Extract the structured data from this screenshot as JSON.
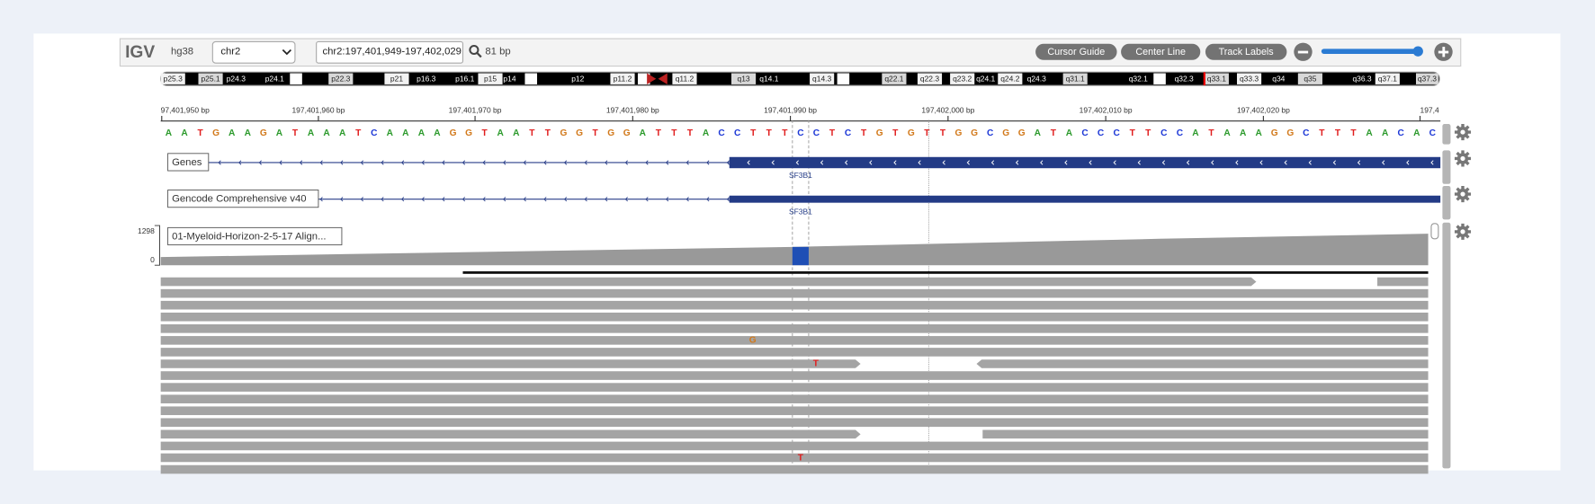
{
  "header": {
    "logo": "IGV",
    "genome": "hg38",
    "chromosome": "chr2",
    "locus": "chr2:197,401,949-197,402,029",
    "width": "81 bp",
    "buttons": [
      "Cursor Guide",
      "Center Line",
      "Track Labels"
    ]
  },
  "ideogram": {
    "bands": [
      "p25.3",
      "p25.1",
      "p24.3",
      "p24.1",
      "p22.3",
      "p21",
      "p16.3",
      "p16.1",
      "p15",
      "p14",
      "p12",
      "p11.2",
      "q11.2",
      "q13",
      "q14.1",
      "q14.3",
      "q22.1",
      "q22.3",
      "q23.2",
      "q24.1",
      "q24.2",
      "q24.3",
      "q31.1",
      "q32.1",
      "q32.3",
      "q33.1",
      "q33.3",
      "q34",
      "q35",
      "q36.3",
      "q37.1",
      "q37.3"
    ]
  },
  "ruler": {
    "labels": [
      "97,401,950 bp",
      "197,401,960 bp",
      "197,401,970 bp",
      "197,401,980 bp",
      "197,401,990 bp",
      "197,402,000 bp",
      "197,402,010 bp",
      "197,402,020 bp",
      "197,4"
    ]
  },
  "sequence": [
    "A",
    "A",
    "T",
    "G",
    "A",
    "A",
    "G",
    "A",
    "T",
    "A",
    "A",
    "A",
    "T",
    "C",
    "A",
    "A",
    "A",
    "A",
    "G",
    "G",
    "T",
    "A",
    "A",
    "T",
    "T",
    "G",
    "G",
    "T",
    "G",
    "G",
    "A",
    "T",
    "T",
    "T",
    "A",
    "C",
    "C",
    "T",
    "T",
    "T",
    "C",
    "C",
    "T",
    "C",
    "T",
    "G",
    "T",
    "G",
    "T",
    "T",
    "G",
    "G",
    "C",
    "G",
    "G",
    "A",
    "T",
    "A",
    "C",
    "C",
    "C",
    "T",
    "T",
    "C",
    "C",
    "A",
    "T",
    "A",
    "A",
    "A",
    "G",
    "G",
    "C",
    "T",
    "T",
    "T",
    "A",
    "A",
    "C",
    "A",
    "C"
  ],
  "tracks": [
    {
      "name": "Genes",
      "gene": "SF3B1"
    },
    {
      "name": "Gencode Comprehensive v40",
      "gene": "SF3B1"
    },
    {
      "name": "01-Myeloid-Horizon-2-5-17 Align...",
      "scale_max": "1298",
      "scale_min": "0",
      "mismatches": [
        "G",
        "T",
        "T"
      ]
    }
  ]
}
